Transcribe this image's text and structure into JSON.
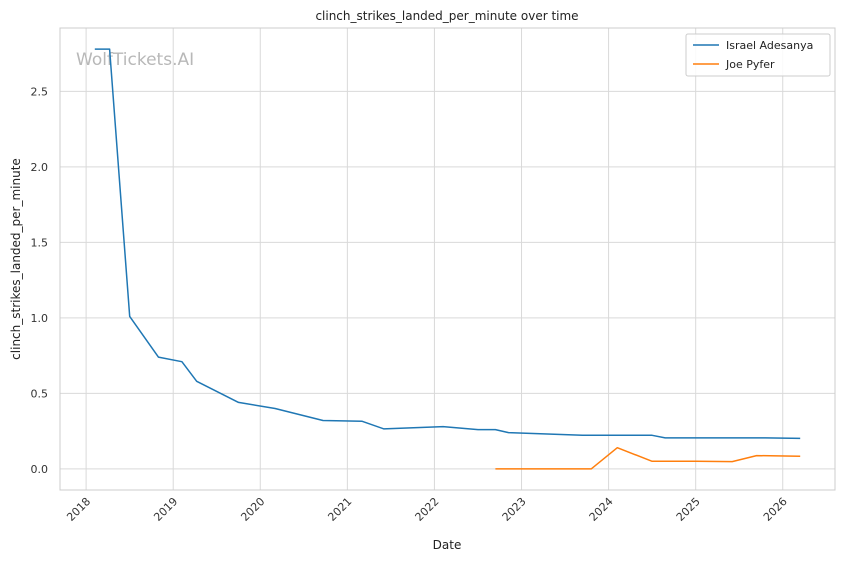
{
  "chart_data": {
    "type": "line",
    "title": "clinch_strikes_landed_per_minute over time",
    "xlabel": "Date",
    "ylabel": "clinch_strikes_landed_per_minute",
    "watermark": "WolfTickets.AI",
    "xlim": [
      2017.7,
      2026.6
    ],
    "ylim": [
      -0.14,
      2.92
    ],
    "x_ticks": [
      "2018",
      "2019",
      "2020",
      "2021",
      "2022",
      "2023",
      "2024",
      "2025",
      "2026"
    ],
    "y_ticks": [
      "0.0",
      "0.5",
      "1.0",
      "1.5",
      "2.0",
      "2.5"
    ],
    "grid": true,
    "legend_position": "top-right",
    "series": [
      {
        "name": "Israel Adesanya",
        "color": "#1f77b4",
        "x": [
          2018.1,
          2018.27,
          2018.5,
          2018.83,
          2019.1,
          2019.27,
          2019.75,
          2020.17,
          2020.72,
          2021.17,
          2021.42,
          2022.1,
          2022.5,
          2022.7,
          2022.85,
          2023.7,
          2024.1,
          2024.5,
          2024.65,
          2025.0,
          2025.5,
          2025.8,
          2026.2
        ],
        "y": [
          2.78,
          2.78,
          1.01,
          0.74,
          0.71,
          0.58,
          0.44,
          0.4,
          0.32,
          0.315,
          0.265,
          0.28,
          0.26,
          0.26,
          0.24,
          0.222,
          0.222,
          0.222,
          0.205,
          0.205,
          0.205,
          0.205,
          0.202
        ]
      },
      {
        "name": "Joe Pyfer",
        "color": "#ff7f0e",
        "x": [
          2022.7,
          2023.2,
          2023.8,
          2024.1,
          2024.5,
          2025.0,
          2025.42,
          2025.7,
          2026.2
        ],
        "y": [
          0.0,
          0.0,
          0.0,
          0.14,
          0.05,
          0.05,
          0.048,
          0.088,
          0.084
        ]
      }
    ]
  }
}
